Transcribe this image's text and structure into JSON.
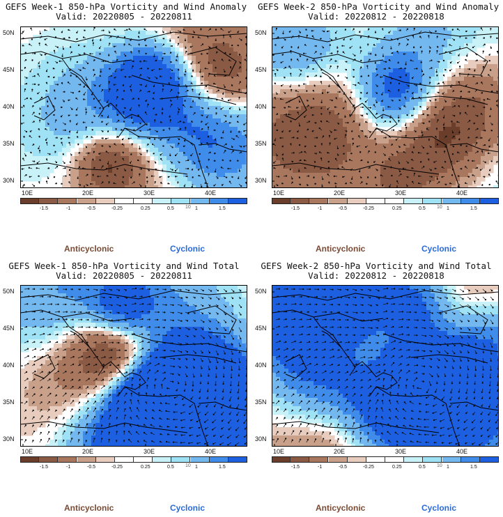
{
  "panels": [
    {
      "title": "GEFS Week-1 850-hPa Vorticity and Wind Anomaly",
      "valid": "Valid: 20220805 - 20220811",
      "type": "anomaly",
      "seed": 11
    },
    {
      "title": "GEFS Week-2 850-hPa Vorticity and Wind Anomaly",
      "valid": "Valid: 20220812 - 20220818",
      "type": "anomaly",
      "seed": 23
    },
    {
      "title": "GEFS Week-1 850-hPa Vorticity and Wind Total",
      "valid": "Valid: 20220805 - 20220811",
      "type": "total",
      "seed": 37
    },
    {
      "title": "GEFS Week-2 850-hPa Vorticity and Wind Total",
      "valid": "Valid: 20220812 - 20220818",
      "type": "total",
      "seed": 51
    }
  ],
  "axes": {
    "lat_labels": [
      "50N",
      "45N",
      "40N",
      "35N",
      "30N"
    ],
    "lon_labels": [
      "10E",
      "20E",
      "30E",
      "40E"
    ]
  },
  "colorbar": {
    "labels": [
      "-1.5",
      "-1",
      "-0.5",
      "-0.25",
      "0.25",
      "0.5",
      "1",
      "1.5"
    ],
    "scale": "10",
    "colors": [
      "#6b3e2b",
      "#8b5a44",
      "#a9765e",
      "#c9a08a",
      "#e8cdbf",
      "#ffffff",
      "#ffffff",
      "#c8f2f8",
      "#9fe2f5",
      "#74b8f0",
      "#3f8cea",
      "#1c5fe0"
    ]
  },
  "legend": {
    "anticyclonic": "Anticyclonic",
    "cyclonic": "Cyclonic"
  }
}
